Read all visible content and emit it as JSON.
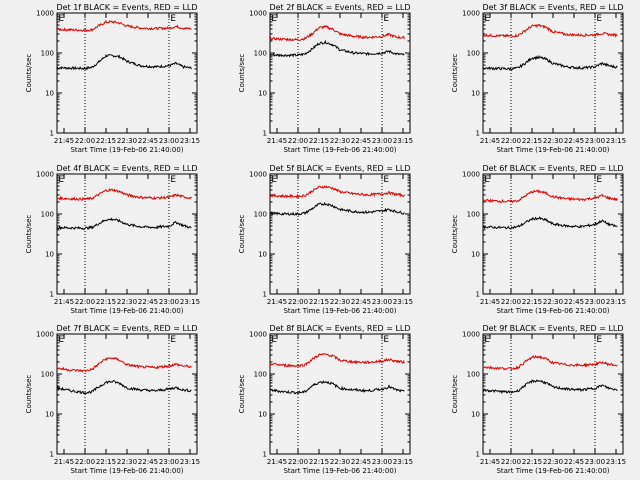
{
  "colors": {
    "events": "#000000",
    "lld": "#e00000",
    "background": "#f0f0f0"
  },
  "chart_data": [
    {
      "type": "line",
      "title": "Det 1f BLACK = Events, RED = LLD",
      "xlabel": "Start Time (19-Feb-06 21:40:00)",
      "ylabel": "Counts/sec",
      "yscale": "log",
      "ylim": [
        1,
        1000
      ],
      "x_ticks": [
        "21:45",
        "22:00",
        "22:15",
        "22:30",
        "22:45",
        "23:00",
        "23:15"
      ],
      "y_ticks": [
        "1",
        "10",
        "100",
        "1000"
      ],
      "markers": [
        {
          "label": "E",
          "x": "21:41"
        },
        {
          "label": "E",
          "x": "23:01"
        }
      ],
      "vlines": [
        "22:00",
        "23:00"
      ],
      "x": [
        "21:40",
        "21:50",
        "22:00",
        "22:05",
        "22:10",
        "22:15",
        "22:20",
        "22:25",
        "22:30",
        "22:40",
        "22:50",
        "23:00",
        "23:05",
        "23:10",
        "23:16"
      ],
      "series": [
        {
          "values": [
            43,
            42,
            41,
            44,
            60,
            85,
            86,
            80,
            62,
            48,
            45,
            48,
            55,
            45,
            42
          ]
        },
        {
          "values": [
            390,
            380,
            370,
            380,
            480,
            590,
            600,
            560,
            470,
            420,
            410,
            420,
            460,
            420,
            400
          ]
        }
      ]
    },
    {
      "type": "line",
      "title": "Det 2f BLACK = Events, RED = LLD",
      "xlabel": "Start Time (19-Feb-06 21:40:00)",
      "ylabel": "Counts/sec",
      "yscale": "log",
      "ylim": [
        1,
        1000
      ],
      "x_ticks": [
        "21:45",
        "22:00",
        "22:15",
        "22:30",
        "22:45",
        "23:00",
        "23:15"
      ],
      "y_ticks": [
        "1",
        "10",
        "100",
        "1000"
      ],
      "markers": [
        {
          "label": "E",
          "x": "21:41"
        },
        {
          "label": "E",
          "x": "23:01"
        }
      ],
      "vlines": [
        "22:00",
        "23:00"
      ],
      "x": [
        "21:40",
        "21:50",
        "22:00",
        "22:05",
        "22:10",
        "22:15",
        "22:20",
        "22:25",
        "22:30",
        "22:40",
        "22:50",
        "23:00",
        "23:05",
        "23:10",
        "23:16"
      ],
      "series": [
        {
          "values": [
            90,
            88,
            88,
            95,
            125,
            175,
            185,
            160,
            120,
            100,
            95,
            100,
            110,
            95,
            90
          ]
        },
        {
          "values": [
            230,
            220,
            215,
            230,
            300,
            430,
            450,
            390,
            300,
            260,
            245,
            260,
            290,
            250,
            240
          ]
        }
      ]
    },
    {
      "type": "line",
      "title": "Det 3f BLACK = Events, RED = LLD",
      "xlabel": "Start Time (19-Feb-06 21:40:00)",
      "ylabel": "Counts/sec",
      "yscale": "log",
      "ylim": [
        1,
        1000
      ],
      "x_ticks": [
        "21:45",
        "22:00",
        "22:15",
        "22:30",
        "22:45",
        "23:00",
        "23:15"
      ],
      "y_ticks": [
        "1",
        "10",
        "100",
        "1000"
      ],
      "markers": [
        {
          "label": "E",
          "x": "21:41"
        },
        {
          "label": "E",
          "x": "23:01"
        }
      ],
      "vlines": [
        "22:00",
        "23:00"
      ],
      "x": [
        "21:40",
        "21:50",
        "22:00",
        "22:05",
        "22:10",
        "22:15",
        "22:20",
        "22:25",
        "22:30",
        "22:40",
        "22:50",
        "23:00",
        "23:05",
        "23:10",
        "23:16"
      ],
      "series": [
        {
          "values": [
            42,
            41,
            40,
            42,
            55,
            75,
            78,
            70,
            55,
            45,
            42,
            45,
            55,
            48,
            44
          ]
        },
        {
          "values": [
            280,
            270,
            265,
            275,
            360,
            470,
            490,
            440,
            340,
            290,
            280,
            285,
            310,
            290,
            280
          ]
        }
      ]
    },
    {
      "type": "line",
      "title": "Det 4f BLACK = Events, RED = LLD",
      "xlabel": "Start Time (19-Feb-06 21:40:00)",
      "ylabel": "Counts/sec",
      "yscale": "log",
      "ylim": [
        1,
        1000
      ],
      "x_ticks": [
        "21:45",
        "22:00",
        "22:15",
        "22:30",
        "22:45",
        "23:00",
        "23:15"
      ],
      "y_ticks": [
        "1",
        "10",
        "100",
        "1000"
      ],
      "markers": [
        {
          "label": "E",
          "x": "21:41"
        },
        {
          "label": "E",
          "x": "23:01"
        }
      ],
      "vlines": [
        "22:00",
        "23:00"
      ],
      "x": [
        "21:40",
        "21:50",
        "22:00",
        "22:05",
        "22:10",
        "22:15",
        "22:20",
        "22:25",
        "22:30",
        "22:40",
        "22:50",
        "23:00",
        "23:05",
        "23:10",
        "23:16"
      ],
      "series": [
        {
          "values": [
            46,
            45,
            44,
            46,
            58,
            72,
            74,
            66,
            55,
            48,
            46,
            50,
            62,
            52,
            45
          ]
        },
        {
          "values": [
            250,
            240,
            235,
            245,
            310,
            390,
            400,
            360,
            300,
            260,
            250,
            260,
            300,
            270,
            250
          ]
        }
      ]
    },
    {
      "type": "line",
      "title": "Det 5f BLACK = Events, RED = LLD",
      "xlabel": "Start Time (19-Feb-06 21:40:00)",
      "ylabel": "Counts/sec",
      "yscale": "log",
      "ylim": [
        1,
        1000
      ],
      "x_ticks": [
        "21:45",
        "22:00",
        "22:15",
        "22:30",
        "22:45",
        "23:00",
        "23:15"
      ],
      "y_ticks": [
        "1",
        "10",
        "100",
        "1000"
      ],
      "markers": [
        {
          "label": "E",
          "x": "21:41"
        },
        {
          "label": "E",
          "x": "23:01"
        }
      ],
      "vlines": [
        "22:00",
        "23:00"
      ],
      "x": [
        "21:40",
        "21:50",
        "22:00",
        "22:05",
        "22:10",
        "22:15",
        "22:20",
        "22:25",
        "22:30",
        "22:40",
        "22:50",
        "23:00",
        "23:05",
        "23:10",
        "23:16"
      ],
      "series": [
        {
          "values": [
            105,
            100,
            100,
            105,
            135,
            175,
            180,
            160,
            130,
            115,
            110,
            120,
            130,
            115,
            105
          ]
        },
        {
          "values": [
            290,
            280,
            275,
            290,
            370,
            470,
            480,
            440,
            360,
            320,
            300,
            320,
            340,
            310,
            290
          ]
        }
      ]
    },
    {
      "type": "line",
      "title": "Det 6f BLACK = Events, RED = LLD",
      "xlabel": "Start Time (19-Feb-06 21:40:00)",
      "ylabel": "Counts/sec",
      "yscale": "log",
      "ylim": [
        1,
        1000
      ],
      "x_ticks": [
        "21:45",
        "22:00",
        "22:15",
        "22:30",
        "22:45",
        "23:00",
        "23:15"
      ],
      "y_ticks": [
        "1",
        "10",
        "100",
        "1000"
      ],
      "markers": [
        {
          "label": "E",
          "x": "21:41"
        },
        {
          "label": "E",
          "x": "23:01"
        }
      ],
      "vlines": [
        "22:00",
        "23:00"
      ],
      "x": [
        "21:40",
        "21:50",
        "22:00",
        "22:05",
        "22:10",
        "22:15",
        "22:20",
        "22:25",
        "22:30",
        "22:40",
        "22:50",
        "23:00",
        "23:05",
        "23:10",
        "23:16"
      ],
      "series": [
        {
          "values": [
            48,
            46,
            45,
            48,
            60,
            75,
            78,
            70,
            56,
            50,
            48,
            55,
            68,
            55,
            48
          ]
        },
        {
          "values": [
            220,
            210,
            205,
            215,
            280,
            360,
            370,
            330,
            270,
            240,
            230,
            250,
            290,
            250,
            230
          ]
        }
      ]
    },
    {
      "type": "line",
      "title": "Det 7f BLACK = Events, RED = LLD",
      "xlabel": "Start Time (19-Feb-06 21:40:00)",
      "ylabel": "Counts/sec",
      "yscale": "log",
      "ylim": [
        1,
        1000
      ],
      "x_ticks": [
        "21:45",
        "22:00",
        "22:15",
        "22:30",
        "22:45",
        "23:00",
        "23:15"
      ],
      "y_ticks": [
        "1",
        "10",
        "100",
        "1000"
      ],
      "markers": [
        {
          "label": "E",
          "x": "21:41"
        },
        {
          "label": "E",
          "x": "23:01"
        }
      ],
      "vlines": [
        "22:00",
        "23:00"
      ],
      "x": [
        "21:40",
        "21:50",
        "22:00",
        "22:05",
        "22:10",
        "22:15",
        "22:20",
        "22:25",
        "22:30",
        "22:40",
        "22:50",
        "23:00",
        "23:05",
        "23:10",
        "23:16"
      ],
      "series": [
        {
          "values": [
            45,
            38,
            34,
            36,
            48,
            62,
            65,
            58,
            45,
            40,
            38,
            42,
            46,
            40,
            38
          ]
        },
        {
          "values": [
            140,
            125,
            120,
            130,
            180,
            240,
            250,
            220,
            170,
            150,
            145,
            160,
            175,
            160,
            150
          ]
        }
      ]
    },
    {
      "type": "line",
      "title": "Det 8f BLACK = Events, RED = LLD",
      "xlabel": "Start Time (19-Feb-06 21:40:00)",
      "ylabel": "Counts/sec",
      "yscale": "log",
      "ylim": [
        1,
        1000
      ],
      "x_ticks": [
        "21:45",
        "22:00",
        "22:15",
        "22:30",
        "22:45",
        "23:00",
        "23:15"
      ],
      "y_ticks": [
        "1",
        "10",
        "100",
        "1000"
      ],
      "markers": [
        {
          "label": "E",
          "x": "21:41"
        },
        {
          "label": "E",
          "x": "23:01"
        }
      ],
      "vlines": [
        "22:00",
        "23:00"
      ],
      "x": [
        "21:40",
        "21:50",
        "22:00",
        "22:05",
        "22:10",
        "22:15",
        "22:20",
        "22:25",
        "22:30",
        "22:40",
        "22:50",
        "23:00",
        "23:05",
        "23:10",
        "23:16"
      ],
      "series": [
        {
          "values": [
            40,
            36,
            34,
            36,
            50,
            62,
            64,
            56,
            44,
            40,
            38,
            42,
            48,
            40,
            36
          ]
        },
        {
          "values": [
            180,
            165,
            160,
            170,
            230,
            300,
            310,
            280,
            220,
            200,
            195,
            210,
            230,
            210,
            195
          ]
        }
      ]
    },
    {
      "type": "line",
      "title": "Det 9f BLACK = Events, RED = LLD",
      "xlabel": "Start Time (19-Feb-06 21:40:00)",
      "ylabel": "Counts/sec",
      "yscale": "log",
      "ylim": [
        1,
        1000
      ],
      "x_ticks": [
        "21:45",
        "22:00",
        "22:15",
        "22:30",
        "22:45",
        "23:00",
        "23:15"
      ],
      "y_ticks": [
        "1",
        "10",
        "100",
        "1000"
      ],
      "markers": [
        {
          "label": "E",
          "x": "21:41"
        },
        {
          "label": "E",
          "x": "23:01"
        }
      ],
      "vlines": [
        "22:00",
        "23:00"
      ],
      "x": [
        "21:40",
        "21:50",
        "22:00",
        "22:05",
        "22:10",
        "22:15",
        "22:20",
        "22:25",
        "22:30",
        "22:40",
        "22:50",
        "23:00",
        "23:05",
        "23:10",
        "23:16"
      ],
      "series": [
        {
          "values": [
            40,
            37,
            35,
            38,
            52,
            66,
            68,
            60,
            47,
            42,
            40,
            44,
            52,
            44,
            40
          ]
        },
        {
          "values": [
            150,
            140,
            135,
            145,
            200,
            260,
            270,
            240,
            190,
            170,
            165,
            175,
            195,
            175,
            165
          ]
        }
      ]
    }
  ]
}
